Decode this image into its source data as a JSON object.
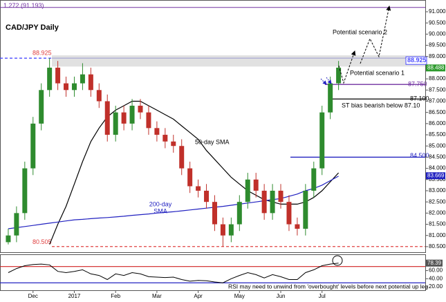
{
  "chart_data": {
    "type": "candlestick",
    "title": "CAD/JPY Daily",
    "xlim": [
      -1,
      50.5
    ],
    "ylim": [
      80.25,
      91.525
    ],
    "xticks": [
      {
        "value": 3,
        "label": "Dec"
      },
      {
        "value": 8,
        "label": "2017"
      },
      {
        "value": 13,
        "label": "Feb"
      },
      {
        "value": 18,
        "label": "Mar"
      },
      {
        "value": 23,
        "label": "Apr"
      },
      {
        "value": 28,
        "label": "May"
      },
      {
        "value": 33,
        "label": "Jun"
      },
      {
        "value": 38,
        "label": "Jul"
      }
    ],
    "yticks": [
      {
        "value": 80.5,
        "label": "80.500"
      },
      {
        "value": 81,
        "label": "81.000"
      },
      {
        "value": 81.5,
        "label": "81.500"
      },
      {
        "value": 82,
        "label": "82.000"
      },
      {
        "value": 82.5,
        "label": "82.500"
      },
      {
        "value": 83,
        "label": "83.000"
      },
      {
        "value": 83.5,
        "label": "83.500"
      },
      {
        "value": 84,
        "label": "84.000"
      },
      {
        "value": 84.5,
        "label": "84.500"
      },
      {
        "value": 85,
        "label": "85.000"
      },
      {
        "value": 85.5,
        "label": "85.500"
      },
      {
        "value": 86,
        "label": "86.000"
      },
      {
        "value": 86.5,
        "label": "86.500"
      },
      {
        "value": 87,
        "label": "87.000"
      },
      {
        "value": 87.5,
        "label": "87.500"
      },
      {
        "value": 88,
        "label": "88.000"
      },
      {
        "value": 88.5,
        "label": "88.500"
      },
      {
        "value": 89,
        "label": "89.000"
      },
      {
        "value": 89.5,
        "label": "89.500"
      },
      {
        "value": 90,
        "label": "90.000"
      },
      {
        "value": 90.5,
        "label": "90.500"
      },
      {
        "value": 91,
        "label": "91.000"
      }
    ],
    "up_color": "#2e8b2e",
    "down_color": "#c0302a",
    "open": [
      80.7,
      81.0,
      82.0,
      84.0,
      86.0,
      87.5,
      88.5,
      87.8,
      87.5,
      87.8,
      88.2,
      87.5,
      87.0,
      85.5,
      86.5,
      86.0,
      86.8,
      86.5,
      85.8,
      85.5,
      85.2,
      85.0,
      84.0,
      83.2,
      83.0,
      82.5,
      81.5,
      81.0,
      81.5,
      82.5,
      83.5,
      83.0,
      82.0,
      83.0,
      82.5,
      81.5,
      81.3,
      83.0,
      84.0,
      86.5,
      87.8
    ],
    "high": [
      81.3,
      82.3,
      84.3,
      86.3,
      87.8,
      88.925,
      88.8,
      88.1,
      88.1,
      88.7,
      88.5,
      87.8,
      87.3,
      86.8,
      86.8,
      87.1,
      87.1,
      86.8,
      86.1,
      85.8,
      85.5,
      85.3,
      84.3,
      83.5,
      83.3,
      82.8,
      81.8,
      81.8,
      82.8,
      83.8,
      83.8,
      83.3,
      83.3,
      83.3,
      82.8,
      81.8,
      83.3,
      84.3,
      86.8,
      88.1,
      88.8
    ],
    "low": [
      80.6,
      80.7,
      81.7,
      83.7,
      85.7,
      87.2,
      87.5,
      87.2,
      87.2,
      87.5,
      87.2,
      86.7,
      85.2,
      85.2,
      85.7,
      85.7,
      86.2,
      85.5,
      85.2,
      84.9,
      84.7,
      83.7,
      82.9,
      82.7,
      82.2,
      81.2,
      80.505,
      80.7,
      81.2,
      82.2,
      82.7,
      81.7,
      81.7,
      82.2,
      81.2,
      81.0,
      81.0,
      82.7,
      83.7,
      86.2,
      87.5
    ],
    "close": [
      81.0,
      82.0,
      84.0,
      86.0,
      87.5,
      88.5,
      87.8,
      87.5,
      87.8,
      88.2,
      87.5,
      87.0,
      85.5,
      86.5,
      86.0,
      86.8,
      86.5,
      85.8,
      85.5,
      85.2,
      85.0,
      84.0,
      83.2,
      83.0,
      82.5,
      81.5,
      81.0,
      81.5,
      82.5,
      83.5,
      83.0,
      82.0,
      83.0,
      82.5,
      81.5,
      81.3,
      83.0,
      84.0,
      86.5,
      87.8,
      88.5
    ],
    "sma": [
      {
        "color": "#000000",
        "values": [
          null,
          null,
          null,
          null,
          null,
          80.6,
          81.5,
          82.3,
          83.3,
          84.3,
          85.2,
          85.8,
          86.3,
          86.6,
          86.8,
          87.0,
          87.0,
          86.8,
          86.6,
          86.4,
          86.2,
          85.9,
          85.6,
          85.3,
          84.8,
          84.4,
          84.0,
          83.6,
          83.3,
          83.0,
          82.8,
          82.6,
          82.5,
          82.4,
          82.4,
          82.4,
          82.5,
          82.7,
          83.0,
          83.4,
          83.8
        ]
      },
      {
        "color": "#2020c0",
        "values": [
          81.3,
          81.35,
          81.4,
          81.45,
          81.5,
          81.55,
          81.6,
          81.65,
          81.7,
          81.72,
          81.75,
          81.78,
          81.8,
          81.83,
          81.86,
          81.9,
          81.93,
          81.96,
          82.0,
          82.03,
          82.06,
          82.1,
          82.14,
          82.18,
          82.22,
          82.26,
          82.3,
          82.35,
          82.4,
          82.45,
          82.5,
          82.55,
          82.6,
          82.65,
          82.75,
          82.85,
          83.0,
          83.1,
          83.25,
          83.45,
          83.65
        ]
      }
    ],
    "resistance_zone": [
      88.55,
      89.05
    ],
    "levels": [
      {
        "value": 91.193,
        "label": "1.272 (91.193)",
        "color": "#7030a0"
      },
      {
        "value": 88.925,
        "label": "88.925",
        "color": "#4a4aff"
      },
      {
        "value": 87.75,
        "label": "87.750",
        "color": "#7030a0"
      },
      {
        "value": 87.1,
        "label": "87.100",
        "color": "#000000"
      },
      {
        "value": 84.5,
        "label": "84.500",
        "color": "#2020c0"
      },
      {
        "value": 80.505,
        "label": "80.505",
        "color": "#e04040"
      }
    ],
    "price_labels": [
      {
        "value": 88.488,
        "label": "88.488",
        "color": "#2e9b2e"
      },
      {
        "value": 83.669,
        "label": "83.669",
        "color": "#2020c0"
      }
    ],
    "annotations": [
      "Potential scenario 2",
      "Potential scenario 1",
      "ST bias bearish below 87.10",
      "50-day SMA",
      "200-day",
      "SMA",
      "RSI may need to unwind from 'overbought' levels before next potential up leg"
    ],
    "rsi": {
      "ylim": [
        10,
        100
      ],
      "yticks": [
        {
          "value": 20,
          "label": "20.00"
        },
        {
          "value": 40,
          "label": "40.00"
        },
        {
          "value": 60,
          "label": "60.00"
        }
      ],
      "levels": [
        {
          "value": 70,
          "color": "#d02020"
        },
        {
          "value": 30,
          "color": "#2020c0"
        }
      ],
      "values": [
        55,
        65,
        72,
        75,
        76,
        74,
        58,
        55,
        58,
        62,
        52,
        48,
        38,
        52,
        48,
        55,
        52,
        45,
        44,
        43,
        44,
        38,
        34,
        36,
        35,
        32,
        30,
        40,
        48,
        55,
        50,
        42,
        50,
        45,
        38,
        38,
        55,
        62,
        72,
        76,
        78.39
      ],
      "last_label": "78.39"
    }
  }
}
